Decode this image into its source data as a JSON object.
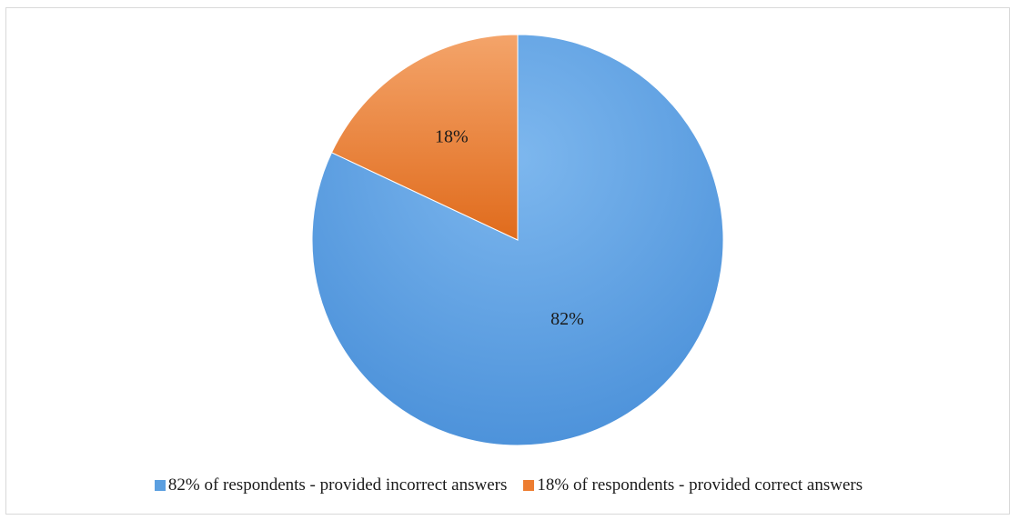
{
  "chart_data": {
    "type": "pie",
    "title": "",
    "slices": [
      {
        "label": "82% of respondents - provided incorrect answers",
        "value": 82,
        "data_label": "82%",
        "color": "#5b9fe0"
      },
      {
        "label": "18% of respondents - provided correct answers",
        "value": 18,
        "data_label": "18%",
        "color": "#ed7d31"
      }
    ],
    "legend_position": "bottom"
  }
}
